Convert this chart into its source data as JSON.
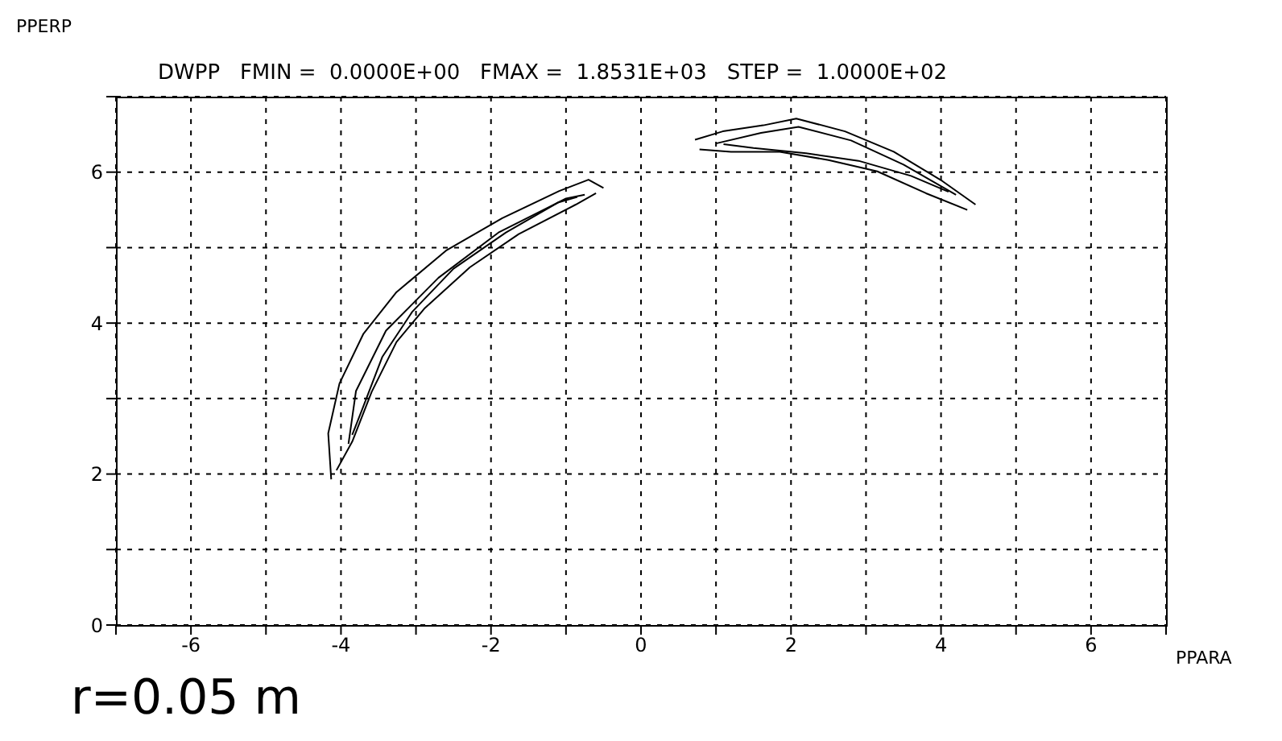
{
  "chart_data": {
    "type": "line",
    "subtitle": "DWPP   FMIN =  0.0000E+00   FMAX =  1.8531E+03   STEP =  1.0000E+02",
    "xlabel": "PPARA",
    "ylabel": "PPERP",
    "annotations": [
      "r=0.05 m"
    ],
    "xlim": [
      -7,
      7
    ],
    "xticks": [
      {
        "value": -7,
        "label": null
      },
      -6,
      {
        "value": -5,
        "label": null
      },
      -4,
      {
        "value": -3,
        "label": null
      },
      -2,
      {
        "value": -1,
        "label": null
      },
      0,
      {
        "value": 1,
        "label": null
      },
      2,
      {
        "value": 3,
        "label": null
      },
      4,
      {
        "value": 5,
        "label": null
      },
      6,
      {
        "value": 7,
        "label": null
      }
    ],
    "ylim": [
      0,
      7
    ],
    "yticks": [
      0,
      {
        "value": 1,
        "label": null
      },
      2,
      {
        "value": 3,
        "label": null
      },
      4,
      {
        "value": 5,
        "label": null
      },
      6,
      {
        "value": 7,
        "label": null
      }
    ],
    "grid": true,
    "marker": "none",
    "line_style": "solid",
    "series": [
      {
        "color": "#000000",
        "x": [
          -4.13,
          -4.17,
          -4.02,
          -3.7,
          -3.26,
          -2.6,
          -1.85,
          -1.09,
          -0.7,
          -0.5
        ],
        "values": [
          1.93,
          2.54,
          3.2,
          3.86,
          4.41,
          4.96,
          5.39,
          5.75,
          5.9,
          5.79
        ]
      },
      {
        "color": "#000000",
        "x": [
          -4.06,
          -3.85,
          -3.59,
          -3.26,
          -2.89,
          -2.28,
          -1.63,
          -0.87,
          -0.6
        ],
        "values": [
          2.05,
          2.43,
          3.09,
          3.75,
          4.19,
          4.74,
          5.18,
          5.57,
          5.72
        ]
      },
      {
        "color": "#000000",
        "x": [
          -3.9,
          -3.8,
          -3.4,
          -2.7,
          -1.9,
          -1.0,
          -0.75
        ],
        "values": [
          2.4,
          3.1,
          3.9,
          4.6,
          5.2,
          5.65,
          5.7
        ]
      },
      {
        "color": "#000000",
        "x": [
          -3.85,
          -3.7,
          -3.45,
          -3.05,
          -2.5,
          -1.8,
          -1.1,
          -0.85
        ],
        "values": [
          2.52,
          2.9,
          3.55,
          4.15,
          4.72,
          5.2,
          5.6,
          5.67
        ]
      },
      {
        "color": "#000000",
        "x": [
          0.72,
          1.09,
          1.63,
          2.07,
          2.72,
          3.37,
          4.02,
          4.46
        ],
        "values": [
          6.43,
          6.54,
          6.62,
          6.71,
          6.54,
          6.27,
          5.88,
          5.57
        ]
      },
      {
        "color": "#000000",
        "x": [
          0.78,
          1.2,
          1.85,
          2.5,
          3.15,
          3.8,
          4.35
        ],
        "values": [
          6.3,
          6.27,
          6.27,
          6.16,
          6.01,
          5.72,
          5.5
        ]
      },
      {
        "color": "#000000",
        "x": [
          1.0,
          1.6,
          2.1,
          2.8,
          3.5,
          4.2
        ],
        "values": [
          6.38,
          6.52,
          6.6,
          6.42,
          6.1,
          5.7
        ]
      },
      {
        "color": "#000000",
        "x": [
          1.1,
          1.5,
          2.2,
          2.9,
          3.6,
          4.1
        ],
        "values": [
          6.37,
          6.32,
          6.25,
          6.15,
          5.95,
          5.74
        ]
      }
    ]
  }
}
